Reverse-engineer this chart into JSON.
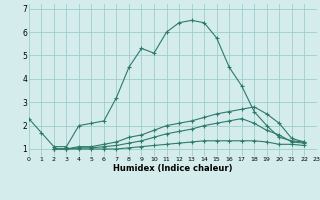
{
  "x": [
    0,
    1,
    2,
    3,
    4,
    5,
    6,
    7,
    8,
    9,
    10,
    11,
    12,
    13,
    14,
    15,
    16,
    17,
    18,
    19,
    20,
    21,
    22,
    23
  ],
  "line1": [
    2.3,
    1.7,
    1.1,
    1.1,
    2.0,
    2.1,
    2.2,
    3.2,
    4.5,
    5.3,
    5.1,
    6.0,
    6.4,
    6.5,
    6.4,
    5.75,
    4.5,
    3.7,
    2.6,
    2.0,
    1.5,
    1.35,
    1.3,
    null
  ],
  "line2": [
    null,
    null,
    1.0,
    1.0,
    1.1,
    1.1,
    1.2,
    1.3,
    1.5,
    1.6,
    1.8,
    2.0,
    2.1,
    2.2,
    2.35,
    2.5,
    2.6,
    2.7,
    2.8,
    2.5,
    2.1,
    1.45,
    1.3,
    null
  ],
  "line3": [
    null,
    null,
    1.0,
    1.0,
    1.05,
    1.05,
    1.1,
    1.15,
    1.25,
    1.35,
    1.5,
    1.65,
    1.75,
    1.85,
    2.0,
    2.1,
    2.2,
    2.3,
    2.1,
    1.8,
    1.6,
    1.3,
    1.25,
    null
  ],
  "line4": [
    null,
    null,
    1.0,
    1.0,
    1.0,
    1.0,
    1.0,
    1.0,
    1.05,
    1.1,
    1.15,
    1.2,
    1.25,
    1.3,
    1.35,
    1.35,
    1.35,
    1.35,
    1.35,
    1.3,
    1.2,
    1.2,
    1.15,
    null
  ],
  "color": "#2d7a6a",
  "bg_color": "#d4ecec",
  "grid_color": "#9ecece",
  "xlabel": "Humidex (Indice chaleur)",
  "xlim": [
    0,
    23
  ],
  "ylim": [
    0.7,
    7.2
  ],
  "yticks": [
    1,
    2,
    3,
    4,
    5,
    6,
    7
  ],
  "xticks": [
    0,
    1,
    2,
    3,
    4,
    5,
    6,
    7,
    8,
    9,
    10,
    11,
    12,
    13,
    14,
    15,
    16,
    17,
    18,
    19,
    20,
    21,
    22,
    23
  ],
  "marker": "+"
}
